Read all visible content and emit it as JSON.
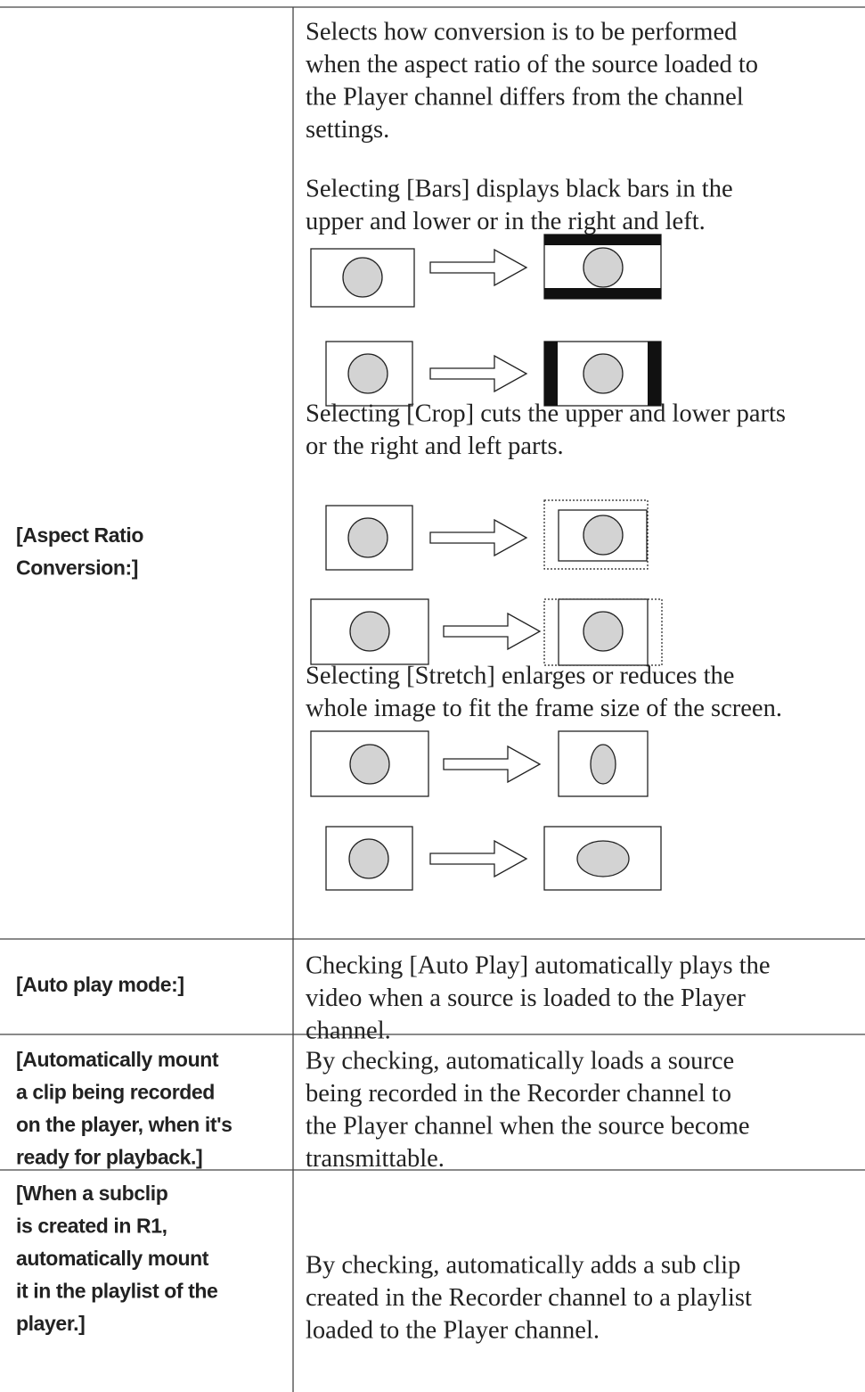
{
  "table": {
    "rows": [
      {
        "label": [
          "[Aspect Ratio",
          "Conversion:]"
        ],
        "blocks": [
          [
            "Selects how conversion is to be performed",
            "when the aspect ratio of the source loaded to",
            "the Player channel differs from the channel",
            "settings."
          ],
          [
            "Selecting [Bars] displays black bars in the",
            "upper and lower or in the right and left."
          ],
          [
            "Selecting [Crop] cuts the upper and lower parts",
            "or the right and left parts."
          ],
          [
            "Selecting [Stretch] enlarges or reduces the",
            "whole image to fit the frame size of the screen."
          ]
        ]
      },
      {
        "label": [
          "[Auto play mode:]"
        ],
        "blocks": [
          [
            "Checking [Auto Play] automatically plays the",
            "video when a source is loaded to the Player",
            "channel."
          ]
        ]
      },
      {
        "label": [
          "[Automatically mount",
          "a clip being recorded",
          "on the player, when it's",
          "ready for playback.]"
        ],
        "blocks": [
          [
            "By checking, automatically loads a source",
            "being recorded in the Recorder channel to",
            "the Player channel when the source become",
            "transmittable."
          ]
        ]
      },
      {
        "label": [
          "[When a subclip",
          "is created in R1,",
          "automatically mount",
          "it in the playlist of the",
          "player.]"
        ],
        "blocks": [
          [
            "By checking, automatically adds a sub clip",
            "created in the Recorder channel to a playlist",
            "loaded to the Player channel."
          ]
        ]
      }
    ]
  }
}
